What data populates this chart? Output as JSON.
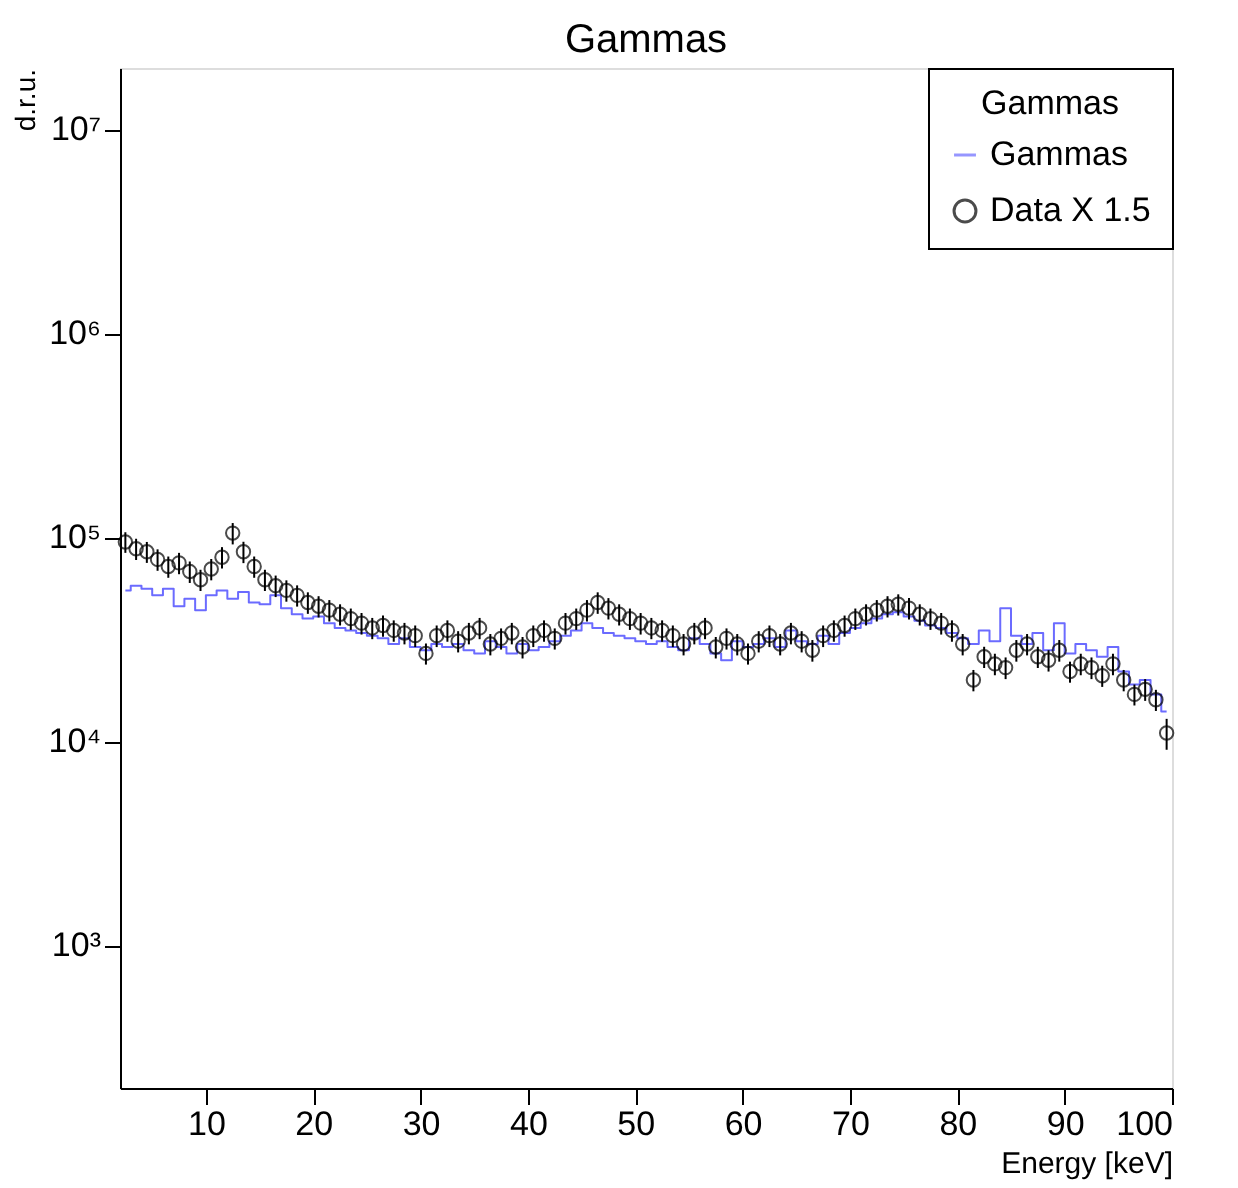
{
  "chart_data": {
    "type": "scatter",
    "title": "Gammas",
    "xlabel": "Energy [keV]",
    "ylabel": "d.r.u.",
    "legend_title": "Gammas",
    "legend": "top right",
    "grid": false,
    "log": "y",
    "xlim": [
      2,
      100
    ],
    "xticks": [
      10,
      20,
      30,
      40,
      50,
      60,
      70,
      80,
      90,
      100
    ],
    "ylim": [
      200,
      20000000
    ],
    "yticks": [
      {
        "value": 1000,
        "label": "10³"
      },
      {
        "value": 10000,
        "label": "10⁴"
      },
      {
        "value": 100000,
        "label": "10⁵"
      },
      {
        "value": 1000000,
        "label": "10⁶"
      },
      {
        "value": 10000000,
        "label": "10⁷"
      }
    ],
    "x": [
      2.5,
      3.5,
      4.5,
      5.5,
      6.5,
      7.5,
      8.5,
      9.5,
      10.5,
      11.5,
      12.5,
      13.5,
      14.5,
      15.5,
      16.5,
      17.5,
      18.5,
      19.5,
      20.5,
      21.5,
      22.5,
      23.5,
      24.5,
      25.5,
      26.5,
      27.5,
      28.5,
      29.5,
      30.5,
      31.5,
      32.5,
      33.5,
      34.5,
      35.5,
      36.5,
      37.5,
      38.5,
      39.5,
      40.5,
      41.5,
      42.5,
      43.5,
      44.5,
      45.5,
      46.5,
      47.5,
      48.5,
      49.5,
      50.5,
      51.5,
      52.5,
      53.5,
      54.5,
      55.5,
      56.5,
      57.5,
      58.5,
      59.5,
      60.5,
      61.5,
      62.5,
      63.5,
      64.5,
      65.5,
      66.5,
      67.5,
      68.5,
      69.5,
      70.5,
      71.5,
      72.5,
      73.5,
      74.5,
      75.5,
      76.5,
      77.5,
      78.5,
      79.5,
      80.5,
      81.5,
      82.5,
      83.5,
      84.5,
      85.5,
      86.5,
      87.5,
      88.5,
      89.5,
      90.5,
      91.5,
      92.5,
      93.5,
      94.5,
      95.5,
      96.5,
      97.5,
      98.5,
      99.5
    ],
    "series": [
      {
        "name": "Gammas",
        "type": "step",
        "color": "#6b6bff",
        "values": [
          55000,
          58000,
          56000,
          52000,
          56000,
          46000,
          50000,
          44000,
          52000,
          55000,
          50000,
          54000,
          48000,
          47000,
          52000,
          45000,
          42000,
          40000,
          41000,
          38000,
          36000,
          35000,
          34000,
          33000,
          32000,
          30000,
          32000,
          29000,
          28000,
          30000,
          29000,
          30000,
          28000,
          27000,
          31000,
          29000,
          27000,
          30000,
          28000,
          29000,
          31000,
          33000,
          35000,
          38000,
          36000,
          34000,
          33000,
          32000,
          31000,
          30000,
          31000,
          29000,
          28000,
          32000,
          30000,
          27000,
          25000,
          31000,
          29000,
          30000,
          32000,
          29000,
          35000,
          31000,
          30000,
          33000,
          30000,
          34000,
          36000,
          38000,
          40000,
          42000,
          43000,
          41000,
          39000,
          37000,
          36000,
          34000,
          32000,
          30000,
          35000,
          31000,
          45000,
          33000,
          30000,
          34000,
          28000,
          38000,
          27000,
          30000,
          28000,
          26000,
          29000,
          22000,
          19000,
          20000,
          17000,
          14000
        ]
      },
      {
        "name": "Data X 1.5",
        "type": "scatter",
        "marker": "circle",
        "color": "#000000",
        "values": [
          95000,
          88000,
          85000,
          78000,
          72000,
          75000,
          68000,
          62000,
          70000,
          80000,
          105000,
          85000,
          72000,
          62000,
          58000,
          55000,
          52000,
          48000,
          46000,
          44000,
          42000,
          40000,
          38000,
          36000,
          37000,
          35000,
          34000,
          33000,
          27000,
          33000,
          35000,
          31000,
          34000,
          36000,
          30000,
          32000,
          34000,
          29000,
          33000,
          35000,
          32000,
          38000,
          40000,
          44000,
          48000,
          45000,
          42000,
          40000,
          38000,
          36000,
          35000,
          33000,
          30000,
          34000,
          36000,
          29000,
          32000,
          30000,
          27000,
          31000,
          33000,
          30000,
          34000,
          31000,
          28000,
          33000,
          35000,
          37000,
          40000,
          42000,
          44000,
          46000,
          47000,
          45000,
          42000,
          40000,
          38000,
          35000,
          30000,
          20000,
          26000,
          24000,
          23000,
          28000,
          30000,
          26000,
          25000,
          28000,
          22000,
          24000,
          23000,
          21000,
          24000,
          20000,
          17000,
          18000,
          16000,
          11000
        ],
        "errors": [
          11000,
          10500,
          10000,
          9400,
          8600,
          9000,
          8200,
          7400,
          8400,
          9600,
          12600,
          10200,
          8600,
          7400,
          7000,
          6600,
          6200,
          5800,
          5500,
          5300,
          5000,
          4800,
          4600,
          4300,
          4400,
          4200,
          4100,
          4000,
          3200,
          4000,
          4200,
          3700,
          4100,
          4300,
          3600,
          3800,
          4100,
          3500,
          4000,
          4200,
          3800,
          4600,
          4800,
          5300,
          5800,
          5400,
          5000,
          4800,
          4600,
          4300,
          4200,
          4000,
          3600,
          4100,
          4300,
          3500,
          3800,
          3600,
          3200,
          3700,
          4000,
          3600,
          4100,
          3700,
          3400,
          4000,
          4200,
          4400,
          4800,
          5000,
          5300,
          5500,
          5600,
          5400,
          5000,
          4800,
          4600,
          4200,
          3600,
          2400,
          3100,
          2900,
          2800,
          3400,
          3600,
          3100,
          3000,
          3400,
          2600,
          2900,
          2800,
          2500,
          2900,
          2400,
          2000,
          2200,
          1900,
          1900
        ]
      }
    ]
  }
}
